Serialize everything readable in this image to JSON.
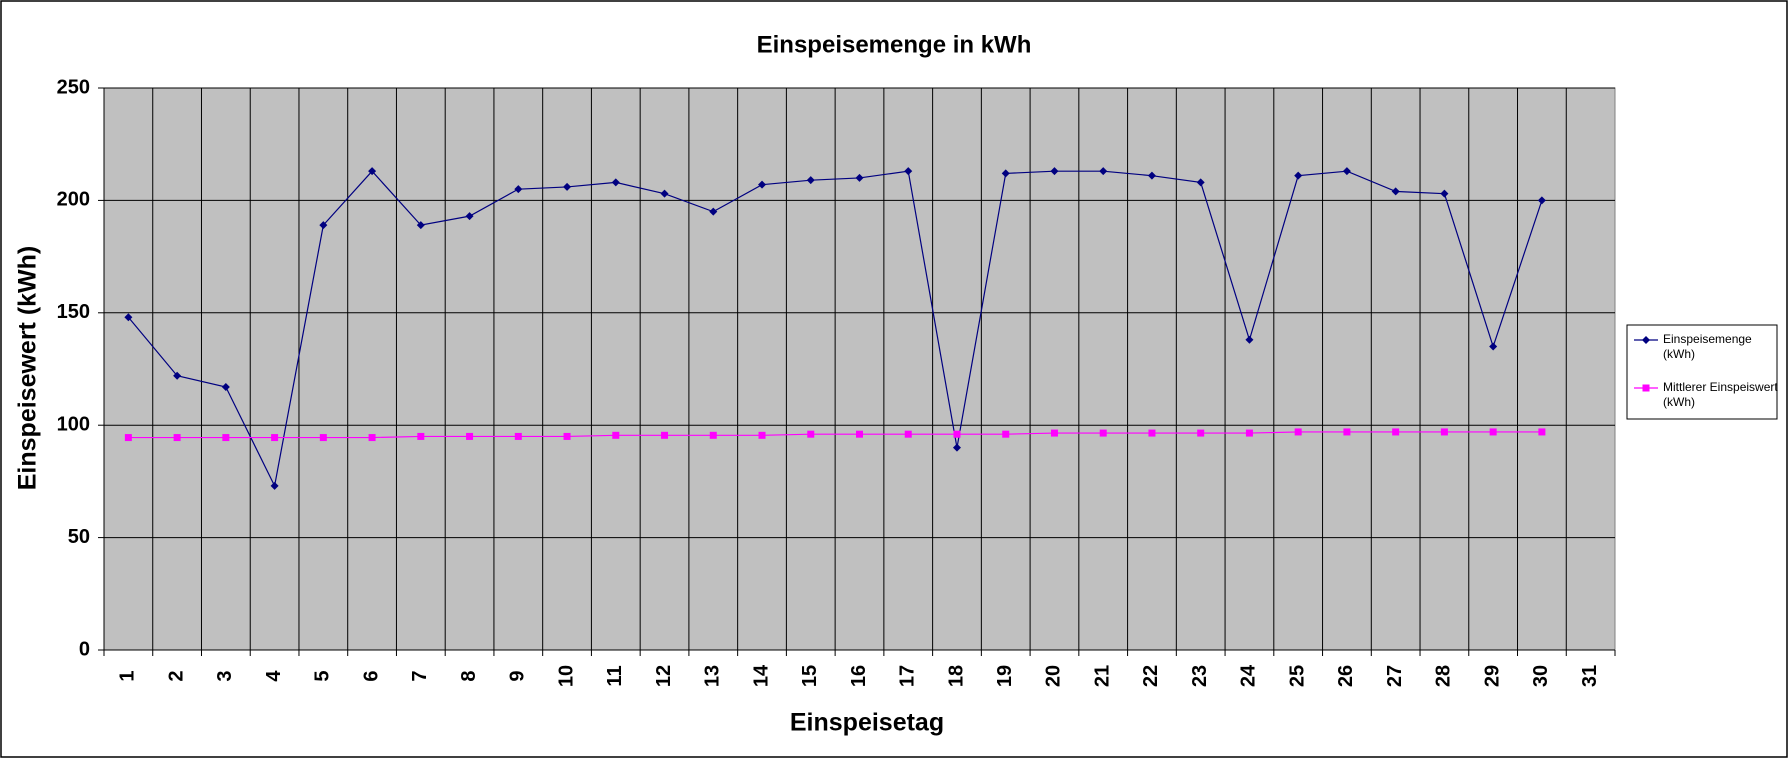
{
  "chart_data": {
    "type": "line",
    "title": "Einspeisemenge in kWh",
    "x_label": "Einspeisetag",
    "y_label": "Einspeisewert (kWh)",
    "categories": [
      1,
      2,
      3,
      4,
      5,
      6,
      7,
      8,
      9,
      10,
      11,
      12,
      13,
      14,
      15,
      16,
      17,
      18,
      19,
      20,
      21,
      22,
      23,
      24,
      25,
      26,
      27,
      28,
      29,
      30,
      31
    ],
    "series": [
      {
        "name": "Einspeisemenge (kWh)",
        "color": "#000080",
        "marker": "diamond",
        "values": [
          148,
          122,
          117,
          73,
          189,
          213,
          189,
          193,
          205,
          206,
          208,
          203,
          195,
          207,
          209,
          210,
          213,
          90,
          212,
          213,
          213,
          211,
          208,
          138,
          211,
          213,
          204,
          203,
          135,
          200,
          null
        ]
      },
      {
        "name": "Mittlerer Einspeiswert (kWh)",
        "color": "#ff00ff",
        "marker": "square",
        "values": [
          94.5,
          94.5,
          94.5,
          94.5,
          94.5,
          94.5,
          95,
          95,
          95,
          95,
          95.5,
          95.5,
          95.5,
          95.5,
          96,
          96,
          96,
          96,
          96,
          96.5,
          96.5,
          96.5,
          96.5,
          96.5,
          97,
          97,
          97,
          97,
          97,
          97,
          null
        ]
      }
    ],
    "ylim": [
      0,
      250
    ],
    "yticks": [
      0,
      50,
      100,
      150,
      200,
      250
    ],
    "grid": true,
    "legend": "right",
    "background": "#c0c0c0"
  }
}
